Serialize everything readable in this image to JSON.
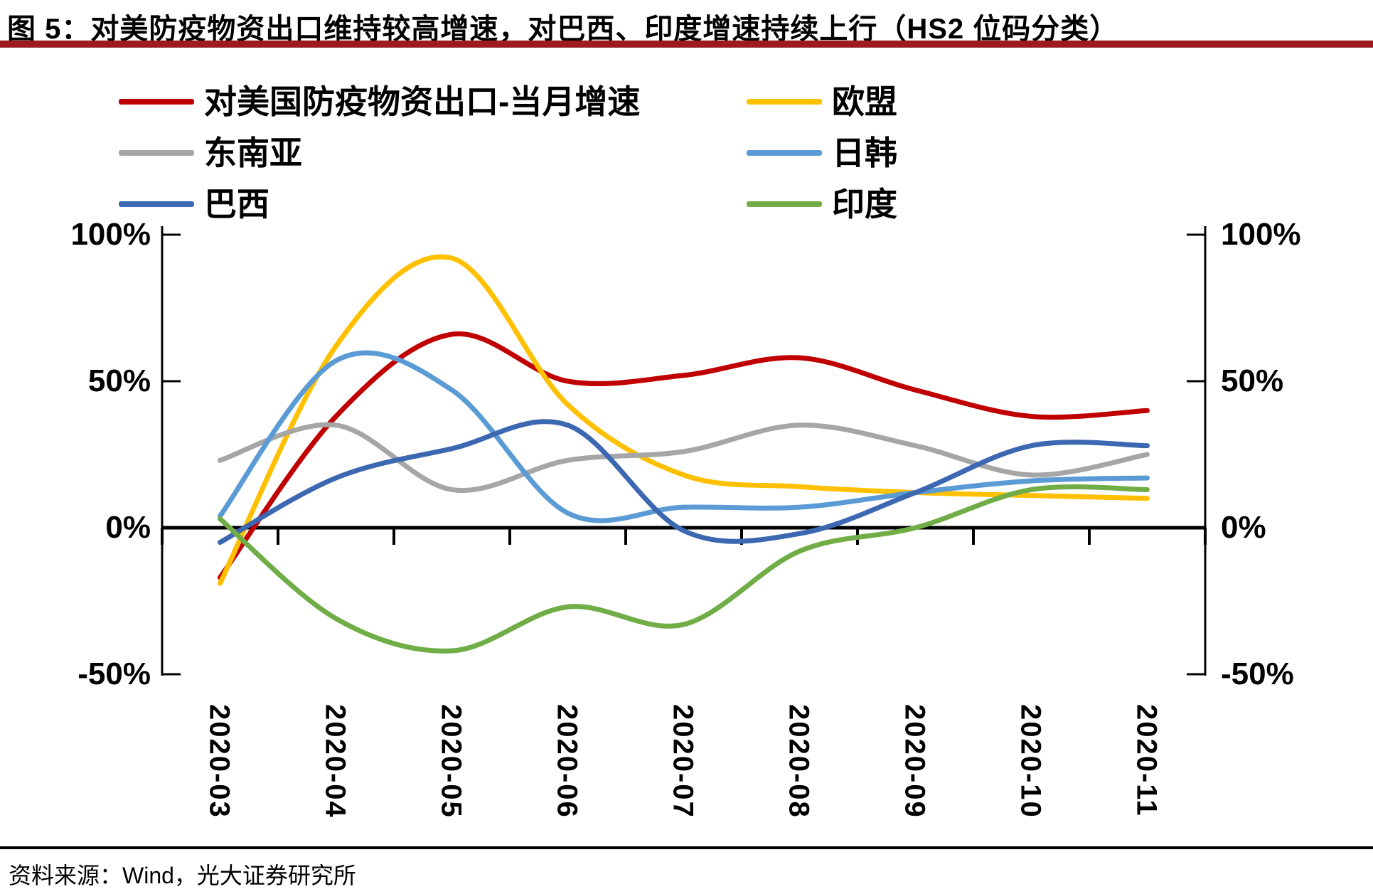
{
  "figure_title": "图 5：对美防疫物资出口维持较高增速，对巴西、印度增速持续上行（HS2 位码分类）",
  "source_note": "资料来源：Wind，光大证券研究所",
  "accent_rule_color": "#9B1B1E",
  "y_axis": {
    "ticks": [
      "100%",
      "50%",
      "0%",
      "-50%"
    ]
  },
  "chart_data": {
    "type": "line",
    "title": "图 5：对美防疫物资出口维持较高增速，对巴西、印度增速持续上行（HS2 位码分类）",
    "categories": [
      "2020-03",
      "2020-04",
      "2020-05",
      "2020-06",
      "2020-07",
      "2020-08",
      "2020-09",
      "2020-10",
      "2020-11"
    ],
    "series": [
      {
        "name": "对美国防疫物资出口-当月增速",
        "color": "#C00000",
        "values": [
          -17,
          38,
          66,
          50,
          52,
          58,
          47,
          38,
          40
        ]
      },
      {
        "name": "欧盟",
        "color": "#FFC000",
        "values": [
          -19,
          62,
          92,
          42,
          18,
          14,
          12,
          11,
          10
        ]
      },
      {
        "name": "东南亚",
        "color": "#A6A6A6",
        "values": [
          23,
          35,
          13,
          23,
          26,
          35,
          28,
          18,
          25
        ]
      },
      {
        "name": "日韩",
        "color": "#5B9BD5",
        "values": [
          4,
          57,
          47,
          5,
          7,
          7,
          12,
          16,
          17
        ]
      },
      {
        "name": "巴西",
        "color": "#3C67B1",
        "values": [
          -5,
          17,
          27,
          35,
          -1,
          -2,
          12,
          28,
          28
        ]
      },
      {
        "name": "印度",
        "color": "#70AD47",
        "values": [
          3,
          -31,
          -42,
          -27,
          -33,
          -8,
          0,
          13,
          13
        ]
      }
    ],
    "ylim": [
      -50,
      100
    ],
    "y_ticks_percent": [
      100,
      50,
      0,
      -50
    ],
    "unit": "%",
    "grid": false,
    "smooth": true,
    "legend_position": "top-two-columns",
    "zero_line_color": "#000000",
    "axis_color": "#000000"
  }
}
